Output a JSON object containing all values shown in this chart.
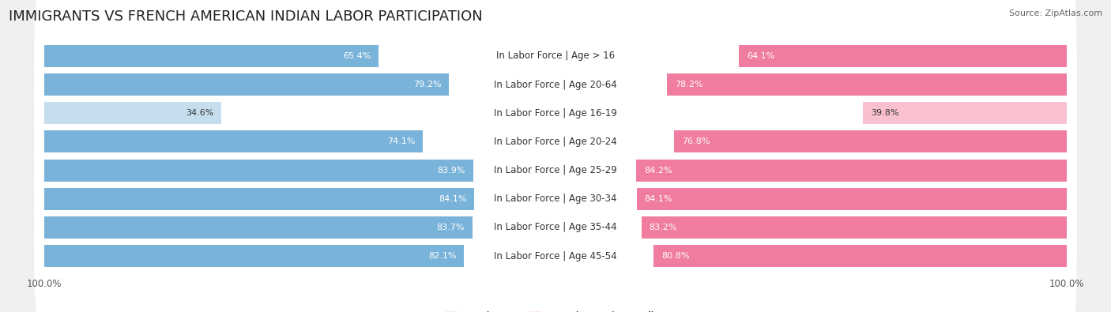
{
  "title": "IMMIGRANTS VS FRENCH AMERICAN INDIAN LABOR PARTICIPATION",
  "source": "Source: ZipAtlas.com",
  "categories": [
    "In Labor Force | Age > 16",
    "In Labor Force | Age 20-64",
    "In Labor Force | Age 16-19",
    "In Labor Force | Age 20-24",
    "In Labor Force | Age 25-29",
    "In Labor Force | Age 30-34",
    "In Labor Force | Age 35-44",
    "In Labor Force | Age 45-54"
  ],
  "immigrants": [
    65.4,
    79.2,
    34.6,
    74.1,
    83.9,
    84.1,
    83.7,
    82.1
  ],
  "french_american_indian": [
    64.1,
    78.2,
    39.8,
    76.8,
    84.2,
    84.1,
    83.2,
    80.8
  ],
  "immigrants_color": "#7ab3d9",
  "french_color": "#f07ca0",
  "immigrants_light_color": "#c5dded",
  "french_light_color": "#f9c0d0",
  "background_color": "#f0f0f0",
  "max_value": 100.0,
  "title_fontsize": 13,
  "label_fontsize": 8.5,
  "value_fontsize": 8,
  "legend_fontsize": 9,
  "axis_label_fontsize": 8.5
}
